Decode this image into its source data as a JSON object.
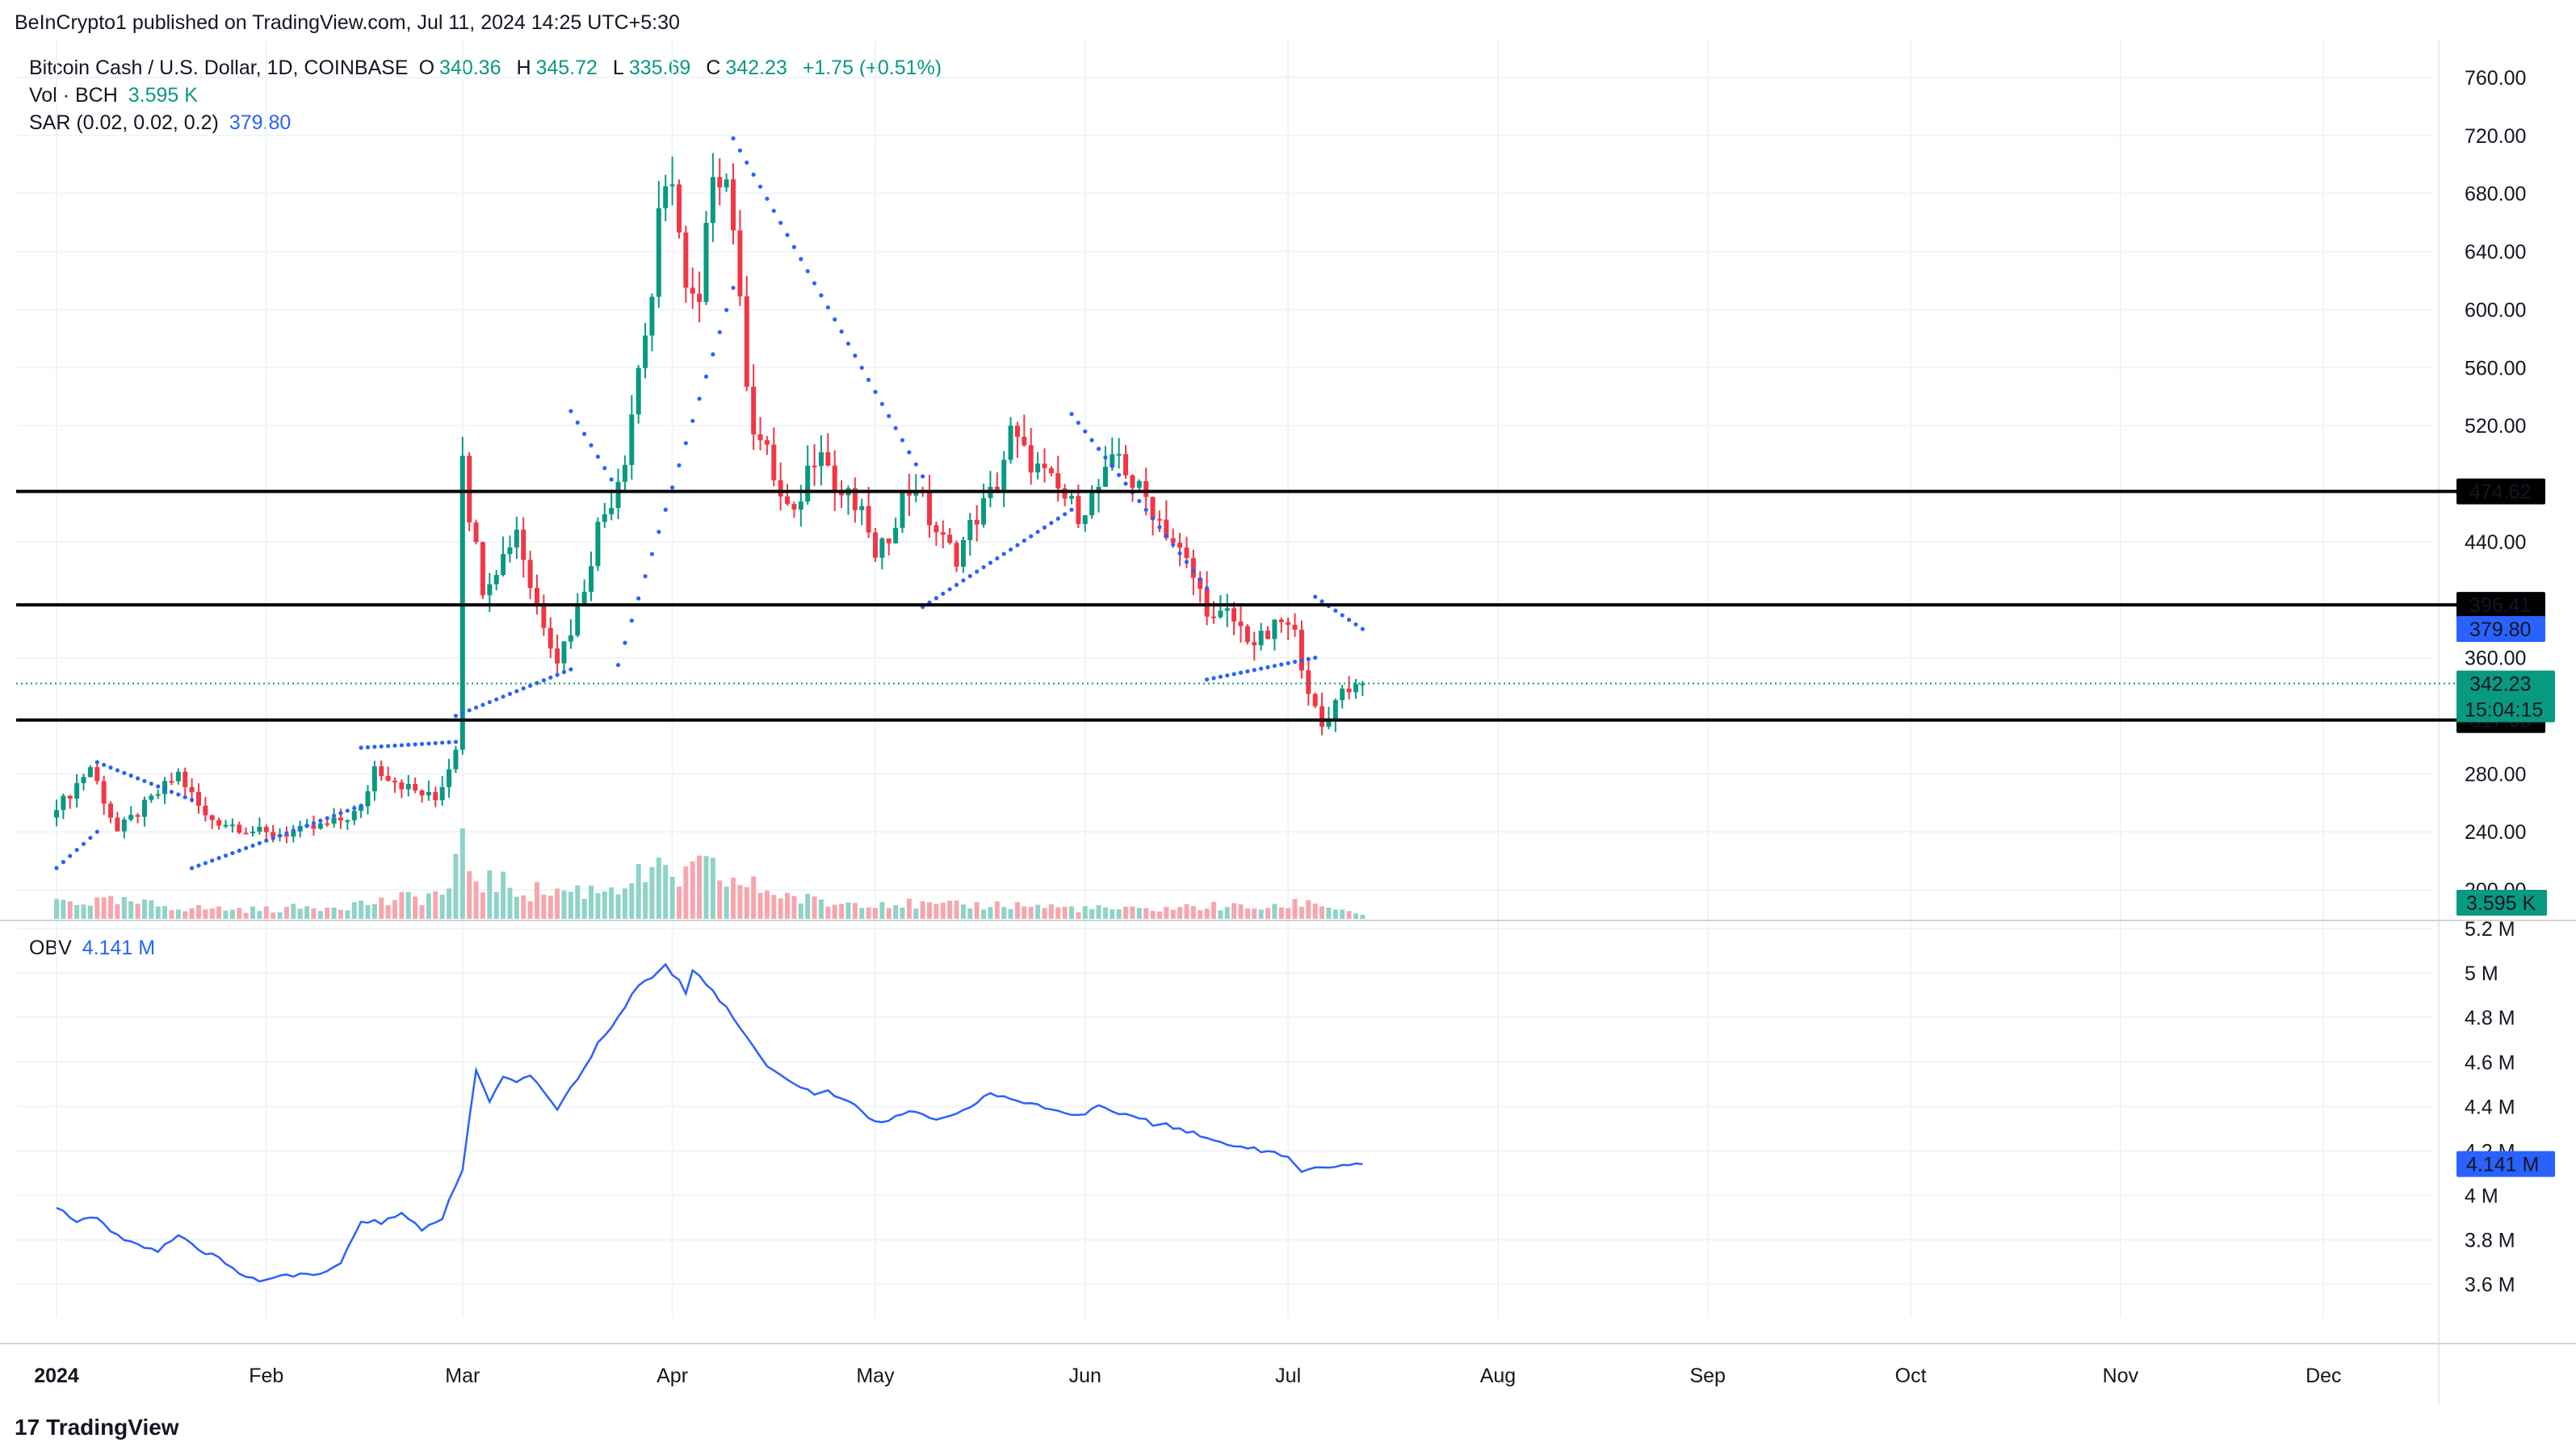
{
  "header": {
    "publish_line": "BeInCrypto1 published on TradingView.com, Jul 11, 2024 14:25 UTC+5:30"
  },
  "legend": {
    "symbol": "Bitcoin Cash / U.S. Dollar, 1D, COINBASE",
    "open_key": "O",
    "open": "340.36",
    "high_key": "H",
    "high": "345.72",
    "low_key": "L",
    "low": "335.69",
    "close_key": "C",
    "close": "342.23",
    "change": "+1.75 (+0.51%)",
    "vol_label": "Vol · BCH",
    "vol_value": "3.595 K",
    "sar_label": "SAR (0.02, 0.02, 0.2)",
    "sar_value": "379.80",
    "obv_label": "OBV",
    "obv_value": "4.141 M"
  },
  "brand": {
    "name": "TradingView",
    "logo_glyph": "17"
  },
  "colors": {
    "up": "#089981",
    "down": "#f23645",
    "up_vol": "#8fd3c7",
    "down_vol": "#f7a6ad",
    "sar": "#2962ff",
    "obv": "#2962ff",
    "level": "#000000",
    "last_price": "#089981",
    "grid": "#f0f3fa"
  },
  "chart_data": [
    {
      "type": "candlestick",
      "title": "Bitcoin Cash / U.S. Dollar, 1D, COINBASE",
      "ylim": [
        180,
        780
      ],
      "price_ticks": [
        200,
        240,
        280,
        360,
        440,
        520,
        560,
        600,
        640,
        680,
        720,
        760
      ],
      "price_tick_labels": [
        "200.00",
        "240.00",
        "280.00",
        "360.00",
        "440.00",
        "520.00",
        "560.00",
        "600.00",
        "640.00",
        "680.00",
        "720.00",
        "760.00"
      ],
      "x_tick_labels": [
        "2024",
        "Feb",
        "Mar",
        "Apr",
        "May",
        "Jun",
        "Jul",
        "Aug",
        "Sep",
        "Oct",
        "Nov",
        "Dec"
      ],
      "x_tick_days": [
        0,
        31,
        60,
        91,
        121,
        152,
        182,
        213,
        244,
        274,
        305,
        335
      ],
      "horizontal_levels": [
        474.62,
        396.41,
        317.08
      ],
      "horizontal_level_labels": [
        "474.62",
        "396.41",
        "317.08"
      ],
      "last_price": 342.23,
      "last_price_label": "342.23",
      "countdown": "15:04:15",
      "sar_last": 379.8,
      "sar_last_label": "379.80",
      "volume_last_label": "3.595 K",
      "close_anchors": [
        [
          0,
          255
        ],
        [
          5,
          285
        ],
        [
          9,
          240
        ],
        [
          14,
          262
        ],
        [
          18,
          280
        ],
        [
          22,
          250
        ],
        [
          26,
          245
        ],
        [
          31,
          238
        ],
        [
          36,
          240
        ],
        [
          41,
          246
        ],
        [
          45,
          255
        ],
        [
          47,
          285
        ],
        [
          52,
          270
        ],
        [
          56,
          262
        ],
        [
          58,
          285
        ],
        [
          59,
          300
        ],
        [
          60,
          505
        ],
        [
          61,
          460
        ],
        [
          63,
          410
        ],
        [
          66,
          430
        ],
        [
          68,
          450
        ],
        [
          70,
          410
        ],
        [
          72,
          385
        ],
        [
          74,
          360
        ],
        [
          76,
          380
        ],
        [
          78,
          410
        ],
        [
          80,
          450
        ],
        [
          82,
          470
        ],
        [
          84,
          500
        ],
        [
          86,
          560
        ],
        [
          88,
          610
        ],
        [
          89,
          660
        ],
        [
          91,
          695
        ],
        [
          93,
          610
        ],
        [
          95,
          600
        ],
        [
          97,
          700
        ],
        [
          99,
          690
        ],
        [
          100,
          660
        ],
        [
          101,
          600
        ],
        [
          102,
          555
        ],
        [
          103,
          520
        ],
        [
          105,
          500
        ],
        [
          107,
          470
        ],
        [
          109,
          455
        ],
        [
          111,
          490
        ],
        [
          113,
          510
        ],
        [
          115,
          475
        ],
        [
          117,
          470
        ],
        [
          120,
          450
        ],
        [
          121,
          425
        ],
        [
          123,
          445
        ],
        [
          125,
          470
        ],
        [
          127,
          480
        ],
        [
          129,
          455
        ],
        [
          131,
          440
        ],
        [
          133,
          430
        ],
        [
          135,
          450
        ],
        [
          137,
          465
        ],
        [
          139,
          480
        ],
        [
          141,
          515
        ],
        [
          143,
          500
        ],
        [
          145,
          490
        ],
        [
          147,
          480
        ],
        [
          149,
          470
        ],
        [
          151,
          460
        ],
        [
          153,
          470
        ],
        [
          155,
          485
        ],
        [
          157,
          500
        ],
        [
          159,
          480
        ],
        [
          161,
          470
        ],
        [
          163,
          455
        ],
        [
          165,
          440
        ],
        [
          167,
          425
        ],
        [
          169,
          405
        ],
        [
          171,
          385
        ],
        [
          173,
          390
        ],
        [
          175,
          380
        ],
        [
          177,
          370
        ],
        [
          179,
          375
        ],
        [
          181,
          385
        ],
        [
          183,
          375
        ],
        [
          185,
          340
        ],
        [
          186,
          322
        ],
        [
          187,
          310
        ],
        [
          188,
          318
        ],
        [
          189,
          335
        ],
        [
          191,
          340
        ],
        [
          193,
          342.23
        ]
      ],
      "sar_segments": [
        {
          "from": 0,
          "to": 6,
          "start": 215,
          "end": 240
        },
        {
          "from": 6,
          "to": 20,
          "start": 288,
          "end": 262
        },
        {
          "from": 20,
          "to": 45,
          "start": 215,
          "end": 258
        },
        {
          "from": 45,
          "to": 59,
          "start": 298,
          "end": 302
        },
        {
          "from": 59,
          "to": 76,
          "start": 320,
          "end": 352
        },
        {
          "from": 76,
          "to": 83,
          "start": 530,
          "end": 475
        },
        {
          "from": 83,
          "to": 100,
          "start": 355,
          "end": 615
        },
        {
          "from": 100,
          "to": 128,
          "start": 718,
          "end": 485
        },
        {
          "from": 128,
          "to": 150,
          "start": 395,
          "end": 462
        },
        {
          "from": 150,
          "to": 170,
          "start": 528,
          "end": 408
        },
        {
          "from": 170,
          "to": 186,
          "start": 345,
          "end": 360
        },
        {
          "from": 186,
          "to": 193,
          "start": 402,
          "end": 379.8
        }
      ],
      "volume_anchors": [
        [
          0,
          0.2
        ],
        [
          10,
          0.18
        ],
        [
          20,
          0.12
        ],
        [
          30,
          0.1
        ],
        [
          40,
          0.14
        ],
        [
          50,
          0.2
        ],
        [
          58,
          0.3
        ],
        [
          60,
          0.8
        ],
        [
          62,
          0.45
        ],
        [
          70,
          0.3
        ],
        [
          80,
          0.32
        ],
        [
          88,
          0.5
        ],
        [
          92,
          0.45
        ],
        [
          96,
          0.55
        ],
        [
          100,
          0.4
        ],
        [
          105,
          0.32
        ],
        [
          110,
          0.22
        ],
        [
          115,
          0.16
        ],
        [
          120,
          0.2
        ],
        [
          130,
          0.14
        ],
        [
          140,
          0.16
        ],
        [
          150,
          0.12
        ],
        [
          160,
          0.1
        ],
        [
          170,
          0.14
        ],
        [
          180,
          0.12
        ],
        [
          185,
          0.2
        ],
        [
          190,
          0.1
        ],
        [
          193,
          0.05
        ]
      ]
    },
    {
      "type": "line",
      "series": [
        {
          "name": "OBV",
          "values_note": "see anchors"
        }
      ],
      "ylim": [
        3.45,
        5.2
      ],
      "y_ticks": [
        3.6,
        3.8,
        4.0,
        4.2,
        4.4,
        4.6,
        4.8,
        5.0,
        5.2
      ],
      "y_tick_labels": [
        "3.6 M",
        "3.8 M",
        "4 M",
        "4.2 M",
        "4.4 M",
        "4.6 M",
        "4.8 M",
        "5 M",
        "5.2 M"
      ],
      "last_value_label": "4.141 M",
      "obv_anchors": [
        [
          0,
          3.95
        ],
        [
          3,
          3.88
        ],
        [
          6,
          3.9
        ],
        [
          9,
          3.82
        ],
        [
          12,
          3.78
        ],
        [
          15,
          3.75
        ],
        [
          18,
          3.82
        ],
        [
          21,
          3.75
        ],
        [
          24,
          3.72
        ],
        [
          27,
          3.65
        ],
        [
          30,
          3.62
        ],
        [
          33,
          3.64
        ],
        [
          36,
          3.64
        ],
        [
          39,
          3.64
        ],
        [
          42,
          3.7
        ],
        [
          45,
          3.88
        ],
        [
          48,
          3.88
        ],
        [
          51,
          3.92
        ],
        [
          54,
          3.84
        ],
        [
          57,
          3.9
        ],
        [
          60,
          4.12
        ],
        [
          62,
          4.56
        ],
        [
          64,
          4.42
        ],
        [
          66,
          4.53
        ],
        [
          68,
          4.5
        ],
        [
          70,
          4.54
        ],
        [
          72,
          4.47
        ],
        [
          74,
          4.39
        ],
        [
          76,
          4.48
        ],
        [
          78,
          4.58
        ],
        [
          80,
          4.68
        ],
        [
          82,
          4.75
        ],
        [
          84,
          4.85
        ],
        [
          86,
          4.94
        ],
        [
          88,
          4.98
        ],
        [
          90,
          5.04
        ],
        [
          92,
          4.96
        ],
        [
          93,
          4.9
        ],
        [
          94,
          5.02
        ],
        [
          96,
          4.95
        ],
        [
          98,
          4.88
        ],
        [
          100,
          4.8
        ],
        [
          102,
          4.72
        ],
        [
          104,
          4.62
        ],
        [
          106,
          4.56
        ],
        [
          108,
          4.52
        ],
        [
          110,
          4.48
        ],
        [
          112,
          4.46
        ],
        [
          114,
          4.47
        ],
        [
          116,
          4.44
        ],
        [
          118,
          4.4
        ],
        [
          120,
          4.34
        ],
        [
          122,
          4.32
        ],
        [
          124,
          4.36
        ],
        [
          126,
          4.38
        ],
        [
          128,
          4.36
        ],
        [
          130,
          4.35
        ],
        [
          132,
          4.36
        ],
        [
          134,
          4.38
        ],
        [
          136,
          4.42
        ],
        [
          138,
          4.46
        ],
        [
          140,
          4.44
        ],
        [
          142,
          4.42
        ],
        [
          144,
          4.41
        ],
        [
          146,
          4.4
        ],
        [
          148,
          4.38
        ],
        [
          150,
          4.36
        ],
        [
          152,
          4.37
        ],
        [
          154,
          4.4
        ],
        [
          156,
          4.38
        ],
        [
          158,
          4.36
        ],
        [
          160,
          4.35
        ],
        [
          162,
          4.32
        ],
        [
          164,
          4.32
        ],
        [
          166,
          4.3
        ],
        [
          168,
          4.28
        ],
        [
          170,
          4.26
        ],
        [
          172,
          4.24
        ],
        [
          174,
          4.22
        ],
        [
          176,
          4.22
        ],
        [
          178,
          4.2
        ],
        [
          180,
          4.19
        ],
        [
          182,
          4.17
        ],
        [
          184,
          4.1
        ],
        [
          186,
          4.12
        ],
        [
          188,
          4.12
        ],
        [
          190,
          4.13
        ],
        [
          193,
          4.141
        ]
      ]
    }
  ]
}
